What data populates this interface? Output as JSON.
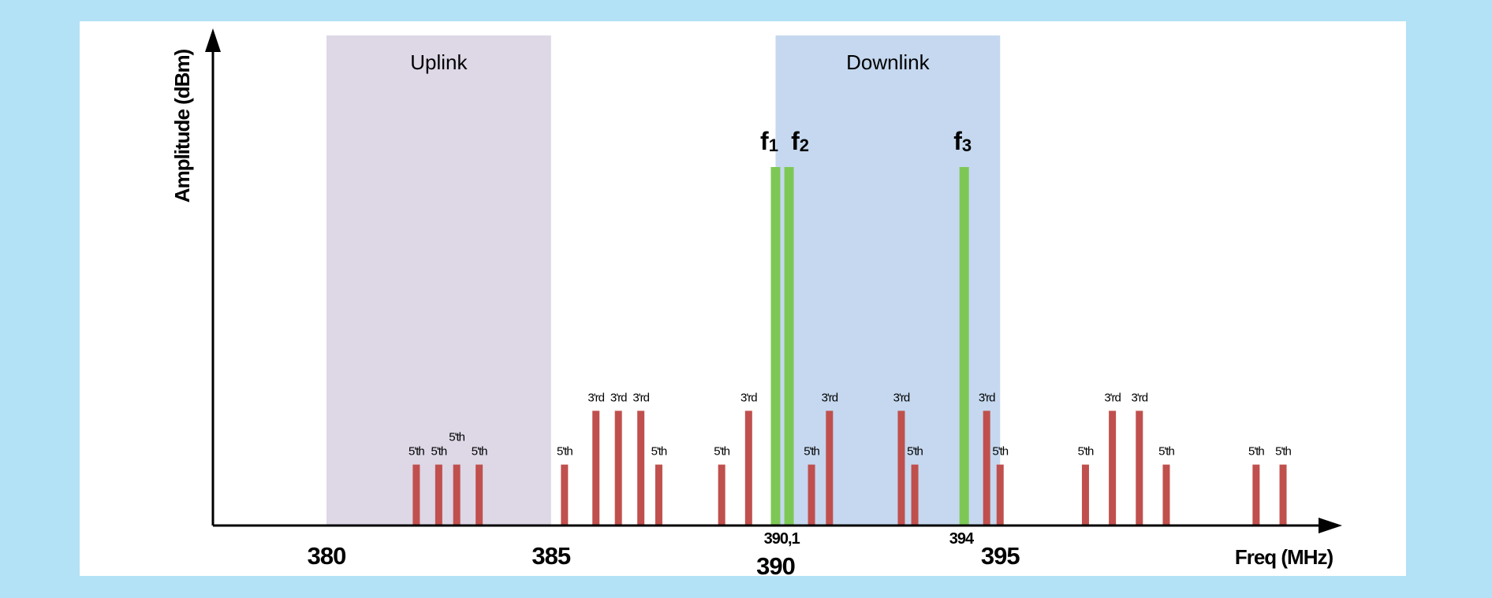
{
  "chart_data": {
    "type": "bar",
    "xlabel": "Freq (MHz)",
    "ylabel": "Amplitude (dBm)",
    "xlim": [
      377.9,
      402.5
    ],
    "x_ticks": [
      "380",
      "385",
      "390",
      "395"
    ],
    "x_tick_values": [
      380,
      385,
      390,
      395
    ],
    "annotations": [
      {
        "text": "390,1",
        "x": 390.1
      },
      {
        "text": "394",
        "x": 394.1
      }
    ],
    "bands": [
      {
        "label": "Uplink",
        "from": 380,
        "to": 385,
        "color": "#ddd7e6"
      },
      {
        "label": "Downlink",
        "from": 390,
        "to": 395,
        "color": "#c5d8ef"
      }
    ],
    "carriers": [
      {
        "name": "f",
        "sub": "1",
        "x": 390.0,
        "amplitude": 1.0
      },
      {
        "name": "f",
        "sub": "2",
        "x": 390.3,
        "amplitude": 1.0
      },
      {
        "name": "f",
        "sub": "3",
        "x": 394.2,
        "amplitude": 1.0
      }
    ],
    "carrier_color": "#7dc855",
    "intermod_color": "#c0504d",
    "intermod": [
      {
        "label": "5'th",
        "x": 382.0,
        "amplitude": 0.17
      },
      {
        "label": "5'th",
        "x": 382.5,
        "amplitude": 0.17
      },
      {
        "label": "5'th",
        "x": 382.9,
        "amplitude": 0.17
      },
      {
        "label": "5'th",
        "x": 383.4,
        "amplitude": 0.17
      },
      {
        "label": "5'th",
        "x": 385.3,
        "amplitude": 0.17
      },
      {
        "label": "3'rd",
        "x": 386.0,
        "amplitude": 0.32
      },
      {
        "label": "3'rd",
        "x": 386.5,
        "amplitude": 0.32
      },
      {
        "label": "3'rd",
        "x": 387.0,
        "amplitude": 0.32
      },
      {
        "label": "5'th",
        "x": 387.4,
        "amplitude": 0.17
      },
      {
        "label": "5'th",
        "x": 388.8,
        "amplitude": 0.17
      },
      {
        "label": "3'rd",
        "x": 389.4,
        "amplitude": 0.32
      },
      {
        "label": "5'th",
        "x": 390.8,
        "amplitude": 0.17
      },
      {
        "label": "3'rd",
        "x": 391.2,
        "amplitude": 0.32
      },
      {
        "label": "3'rd",
        "x": 392.8,
        "amplitude": 0.32
      },
      {
        "label": "5'th",
        "x": 393.1,
        "amplitude": 0.17
      },
      {
        "label": "3'rd",
        "x": 394.7,
        "amplitude": 0.32
      },
      {
        "label": "5'th",
        "x": 395.0,
        "amplitude": 0.17
      },
      {
        "label": "5'th",
        "x": 396.9,
        "amplitude": 0.17
      },
      {
        "label": "3'rd",
        "x": 397.5,
        "amplitude": 0.32
      },
      {
        "label": "3'rd",
        "x": 398.1,
        "amplitude": 0.32
      },
      {
        "label": "5'th",
        "x": 398.7,
        "amplitude": 0.17
      },
      {
        "label": "5'th",
        "x": 400.7,
        "amplitude": 0.17
      },
      {
        "label": "5'th",
        "x": 401.3,
        "amplitude": 0.17
      }
    ]
  }
}
